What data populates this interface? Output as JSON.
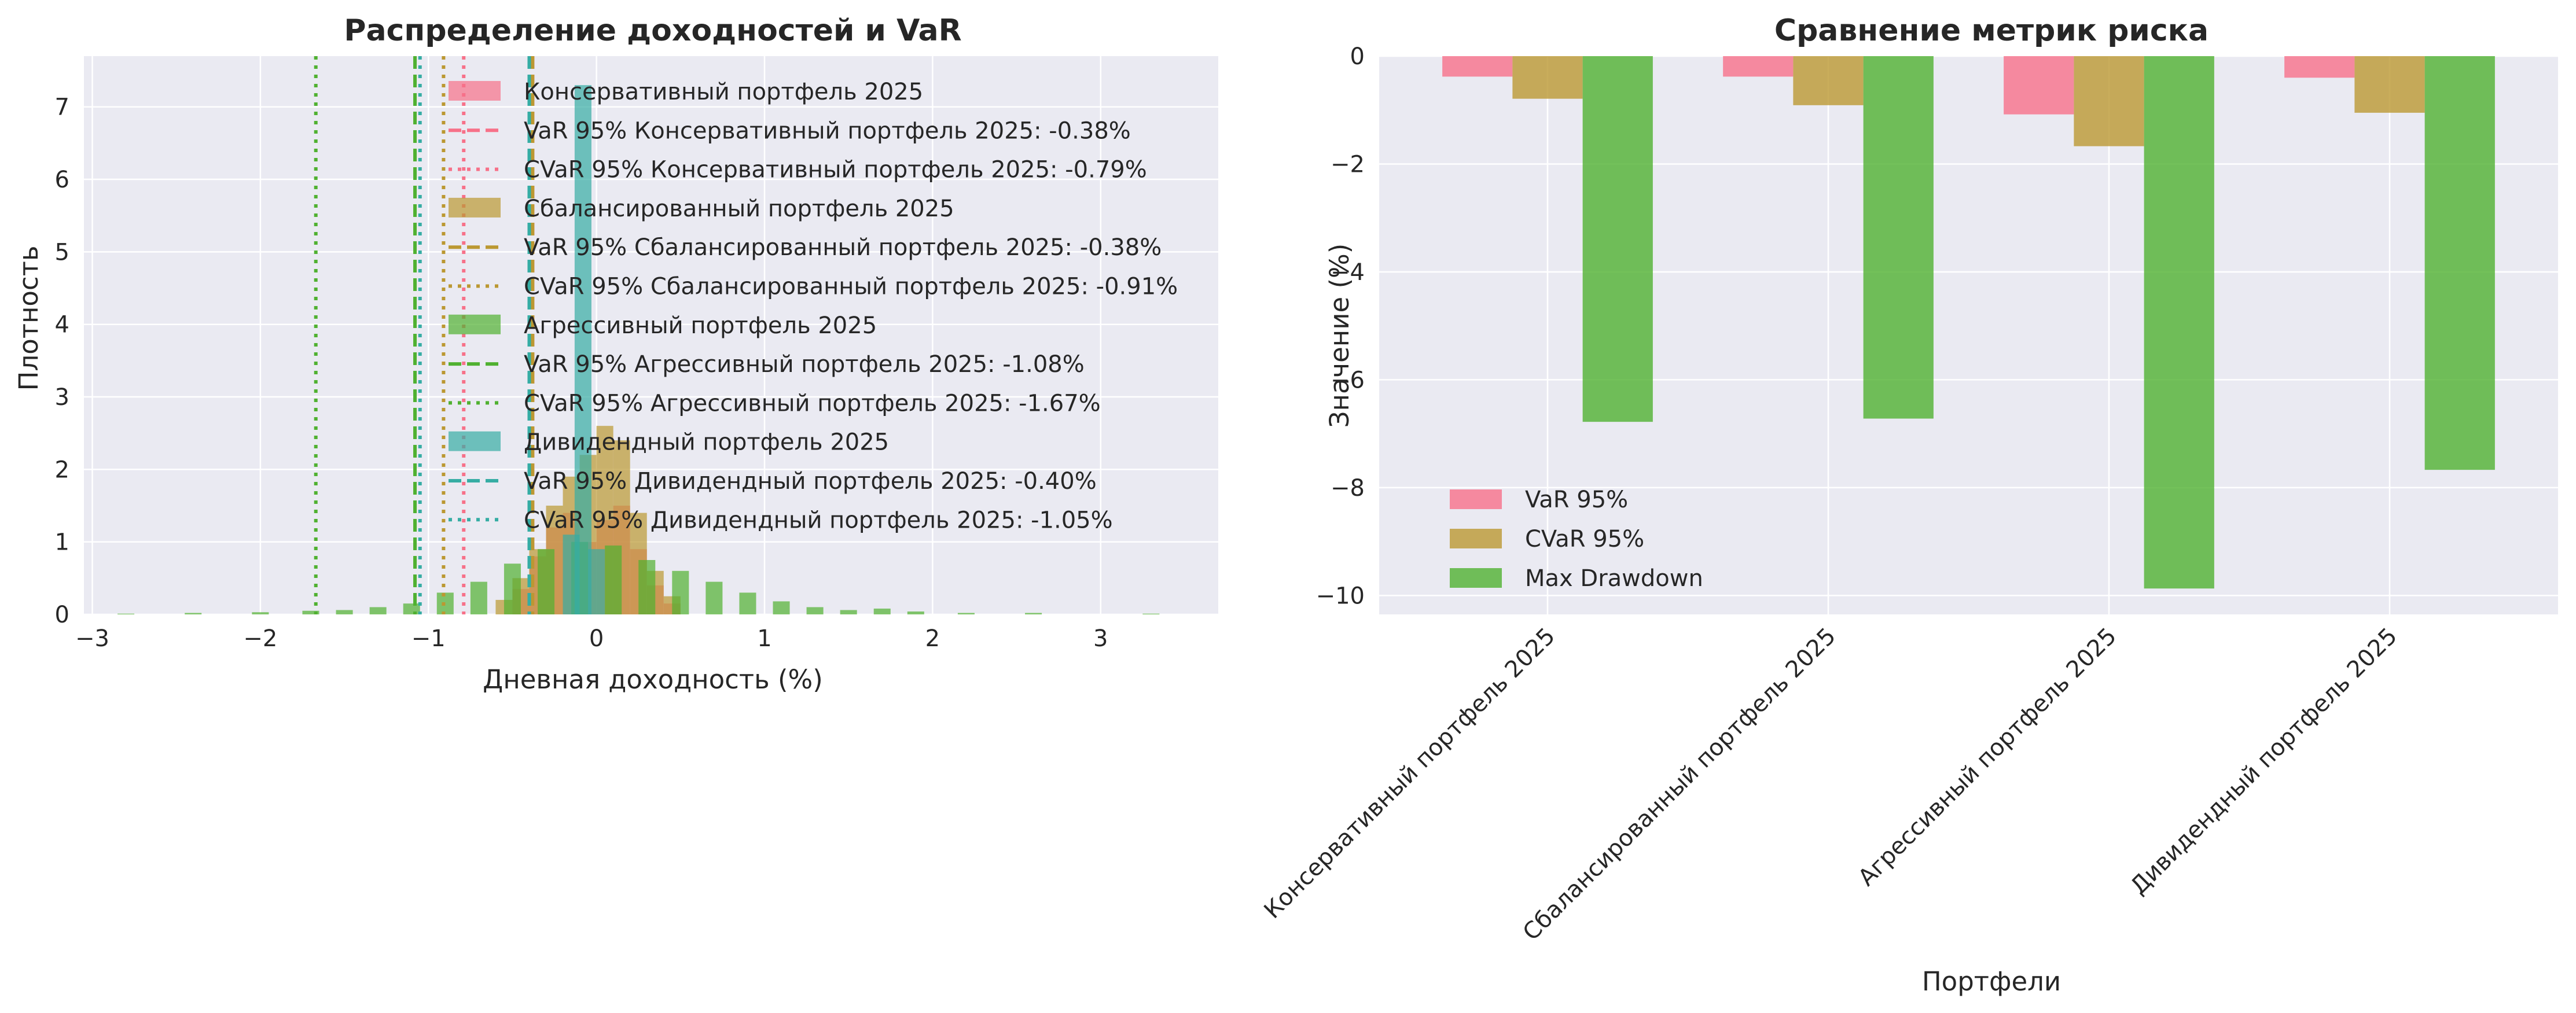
{
  "colors": {
    "figure_bg": "#ffffff",
    "axes_bg": "#eaeaf2",
    "grid": "#ffffff",
    "text": "#262626",
    "portfolio_colors": [
      "#f77189",
      "#bb9832",
      "#50b131",
      "#36ada4"
    ],
    "bar_colors": [
      "#f77189",
      "#bb9832",
      "#50b131"
    ]
  },
  "chart_data": [
    {
      "type": "histogram",
      "title": "Распределение доходностей и VaR",
      "xlabel": "Дневная доходность (%)",
      "ylabel": "Плотность",
      "xlim": [
        -3.05,
        3.7
      ],
      "ylim": [
        0,
        7.7
      ],
      "xticks": [
        -3,
        -2,
        -1,
        0,
        1,
        2,
        3
      ],
      "xtick_labels": [
        "−3",
        "−2",
        "−1",
        "0",
        "1",
        "2",
        "3"
      ],
      "yticks": [
        0,
        1,
        2,
        3,
        4,
        5,
        6,
        7
      ],
      "ytick_labels": [
        "0",
        "1",
        "2",
        "3",
        "4",
        "5",
        "6",
        "7"
      ],
      "grid": true,
      "legend_position": "upper center",
      "series": [
        {
          "name": "Консервативный портфель 2025",
          "color": "#f77189",
          "bins": [
            [
              -0.45,
              0.35
            ],
            [
              -0.35,
              0.8
            ],
            [
              -0.25,
              1.2
            ],
            [
              -0.15,
              1.4
            ],
            [
              -0.05,
              1.0
            ],
            [
              0.05,
              1.3
            ],
            [
              0.15,
              1.5
            ],
            [
              0.25,
              0.9
            ],
            [
              0.35,
              0.4
            ],
            [
              0.45,
              0.15
            ]
          ],
          "var95": -0.38,
          "cvar95": -0.79
        },
        {
          "name": "Сбалансированный портфель 2025",
          "color": "#bb9832",
          "bins": [
            [
              -0.55,
              0.2
            ],
            [
              -0.45,
              0.5
            ],
            [
              -0.35,
              0.9
            ],
            [
              -0.25,
              1.5
            ],
            [
              -0.15,
              1.9
            ],
            [
              -0.05,
              2.2
            ],
            [
              0.05,
              2.6
            ],
            [
              0.15,
              2.4
            ],
            [
              0.25,
              1.4
            ],
            [
              0.35,
              0.6
            ],
            [
              0.45,
              0.25
            ]
          ],
          "var95": -0.38,
          "cvar95": -0.91
        },
        {
          "name": "Агрессивный портфель 2025",
          "color": "#50b131",
          "bins": [
            [
              -2.8,
              0.01
            ],
            [
              -2.4,
              0.02
            ],
            [
              -2.0,
              0.03
            ],
            [
              -1.7,
              0.05
            ],
            [
              -1.5,
              0.06
            ],
            [
              -1.3,
              0.1
            ],
            [
              -1.1,
              0.15
            ],
            [
              -0.9,
              0.3
            ],
            [
              -0.7,
              0.45
            ],
            [
              -0.5,
              0.7
            ],
            [
              -0.3,
              0.9
            ],
            [
              -0.1,
              1.0
            ],
            [
              0.1,
              0.95
            ],
            [
              0.3,
              0.75
            ],
            [
              0.5,
              0.6
            ],
            [
              0.7,
              0.45
            ],
            [
              0.9,
              0.3
            ],
            [
              1.1,
              0.18
            ],
            [
              1.3,
              0.1
            ],
            [
              1.5,
              0.06
            ],
            [
              1.7,
              0.08
            ],
            [
              1.9,
              0.04
            ],
            [
              2.2,
              0.02
            ],
            [
              2.6,
              0.02
            ],
            [
              3.3,
              0.01
            ]
          ],
          "var95": -1.08,
          "cvar95": -1.67
        },
        {
          "name": "Дивидендный портфель 2025",
          "color": "#36ada4",
          "bins": [
            [
              -0.08,
              7.3
            ],
            [
              -0.15,
              1.1
            ],
            [
              0.0,
              0.9
            ]
          ],
          "var95": -0.4,
          "cvar95": -1.05
        }
      ],
      "legend_entries": [
        {
          "label": "Консервативный портфель 2025",
          "kind": "patch",
          "color": "#f77189"
        },
        {
          "label": "VaR 95% Консервативный портфель 2025: -0.38%",
          "kind": "dashed",
          "color": "#f77189"
        },
        {
          "label": "CVaR 95% Консервативный портфель 2025: -0.79%",
          "kind": "dotted",
          "color": "#f77189"
        },
        {
          "label": "Сбалансированный портфель 2025",
          "kind": "patch",
          "color": "#bb9832"
        },
        {
          "label": "VaR 95% Сбалансированный портфель 2025: -0.38%",
          "kind": "dashed",
          "color": "#bb9832"
        },
        {
          "label": "CVaR 95% Сбалансированный портфель 2025: -0.91%",
          "kind": "dotted",
          "color": "#bb9832"
        },
        {
          "label": "Агрессивный портфель 2025",
          "kind": "patch",
          "color": "#50b131"
        },
        {
          "label": "VaR 95% Агрессивный портфель 2025: -1.08%",
          "kind": "dashed",
          "color": "#50b131"
        },
        {
          "label": "CVaR 95% Агрессивный портфель 2025: -1.67%",
          "kind": "dotted",
          "color": "#50b131"
        },
        {
          "label": "Дивидендный портфель 2025",
          "kind": "patch",
          "color": "#36ada4"
        },
        {
          "label": "VaR 95% Дивидендный портфель 2025: -0.40%",
          "kind": "dashed",
          "color": "#36ada4"
        },
        {
          "label": "CVaR 95% Дивидендный портфель 2025: -1.05%",
          "kind": "dotted",
          "color": "#36ada4"
        }
      ]
    },
    {
      "type": "bar",
      "title": "Сравнение метрик риска",
      "xlabel": "Портфели",
      "ylabel": "Значение (%)",
      "categories": [
        "Консервативный портфель 2025",
        "Сбалансированный портфель 2025",
        "Агрессивный портфель 2025",
        "Дивидендный портфель 2025"
      ],
      "ylim": [
        -10.35,
        0
      ],
      "yticks": [
        0,
        -2,
        -4,
        -6,
        -8,
        -10
      ],
      "ytick_labels": [
        "0",
        "−2",
        "−4",
        "−6",
        "−8",
        "−10"
      ],
      "grid": true,
      "legend_position": "lower left",
      "series": [
        {
          "name": "VaR 95%",
          "color": "#f77189",
          "values": [
            -0.38,
            -0.38,
            -1.08,
            -0.4
          ]
        },
        {
          "name": "CVaR 95%",
          "color": "#bb9832",
          "values": [
            -0.79,
            -0.91,
            -1.67,
            -1.05
          ]
        },
        {
          "name": "Max Drawdown",
          "color": "#50b131",
          "values": [
            -6.78,
            -6.72,
            -9.87,
            -7.67
          ]
        }
      ]
    }
  ]
}
